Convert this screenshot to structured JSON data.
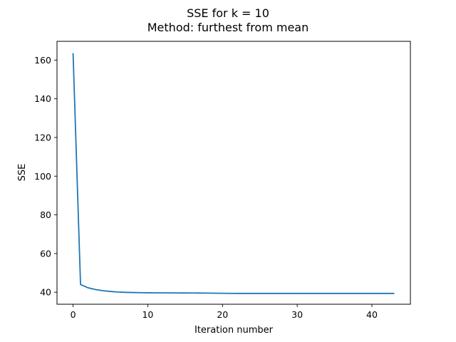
{
  "chart_data": {
    "type": "line",
    "title": "SSE for k = 10",
    "subtitle": "Method: furthest from mean",
    "xlabel": "Iteration number",
    "ylabel": "SSE",
    "xlim": [
      -2.15,
      45.15
    ],
    "ylim": [
      33.8,
      169.7
    ],
    "xticks": [
      0,
      10,
      20,
      30,
      40
    ],
    "yticks": [
      40,
      60,
      80,
      100,
      120,
      140,
      160
    ],
    "grid": false,
    "series": [
      {
        "color": "#1f77b4",
        "x": [
          0,
          1,
          2,
          3,
          4,
          5,
          6,
          7,
          8,
          9,
          10,
          11,
          12,
          13,
          14,
          15,
          16,
          17,
          18,
          19,
          20,
          21,
          22,
          23,
          24,
          25,
          26,
          27,
          28,
          29,
          30,
          31,
          32,
          33,
          34,
          35,
          36,
          37,
          38,
          39,
          40,
          41,
          42,
          43
        ],
        "y": [
          163.6,
          44.0,
          42.3,
          41.4,
          40.8,
          40.4,
          40.1,
          39.95,
          39.85,
          39.78,
          39.72,
          39.7,
          39.68,
          39.66,
          39.64,
          39.62,
          39.6,
          39.57,
          39.54,
          39.5,
          39.45,
          39.42,
          39.4,
          39.4,
          39.4,
          39.4,
          39.4,
          39.4,
          39.4,
          39.4,
          39.4,
          39.4,
          39.4,
          39.4,
          39.4,
          39.4,
          39.4,
          39.4,
          39.4,
          39.4,
          39.4,
          39.4,
          39.4,
          39.4
        ]
      }
    ]
  }
}
